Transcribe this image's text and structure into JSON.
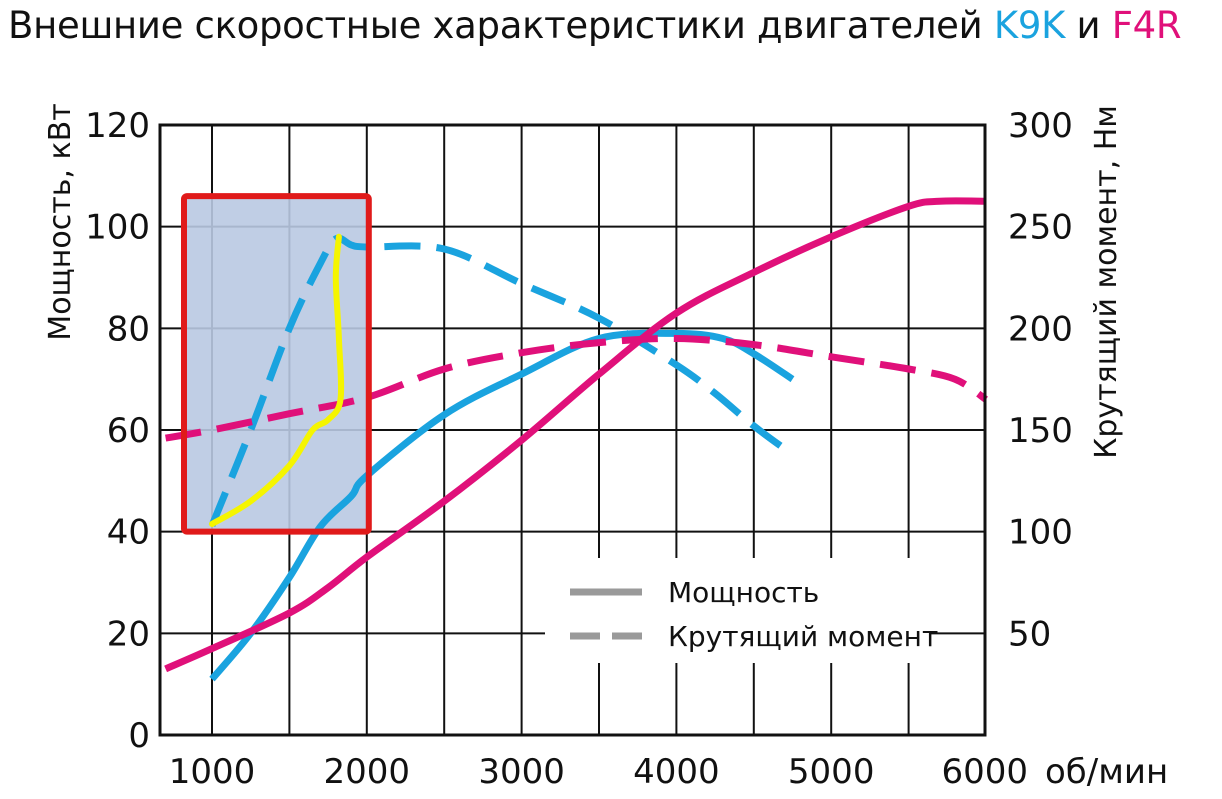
{
  "chart_data": {
    "type": "line",
    "title": {
      "prefix": "Внешние скоростные характеристики двигателей ",
      "engine_a": "K9K",
      "conj": " и ",
      "engine_b": "F4R"
    },
    "xlabel": "об/мин",
    "ylabel_left": "Мощность, кВт",
    "ylabel_right": "Крутящий момент, Нм",
    "xlim": [
      700,
      6000
    ],
    "ylim_left": [
      0,
      120
    ],
    "ylim_right": [
      0,
      300
    ],
    "x_ticks": [
      1000,
      2000,
      3000,
      4000,
      5000,
      6000
    ],
    "y_ticks_left": [
      0,
      20,
      40,
      60,
      80,
      100,
      120
    ],
    "y_ticks_right": [
      50,
      100,
      150,
      200,
      250,
      300
    ],
    "grid": true,
    "legend": {
      "placement": "bottom-center",
      "entries": [
        {
          "label": "Мощность",
          "style": "solid"
        },
        {
          "label": "Крутящий момент",
          "style": "dashed"
        }
      ]
    },
    "colors": {
      "K9K": "#1aa3df",
      "F4R": "#e0107a",
      "highlight_fill": "#b9c9e2",
      "highlight_border": "#e01a1a",
      "annotation": "#f5f500",
      "legend": "#9a9a9a"
    },
    "series": [
      {
        "name": "K9K",
        "measure": "Мощность",
        "style": "solid",
        "x": [
          1000,
          1250,
          1500,
          1700,
          1900,
          2000,
          2500,
          3000,
          3500,
          4000,
          4300,
          4500,
          4750
        ],
        "y": [
          11,
          20,
          31,
          41,
          47,
          51,
          63,
          71,
          78,
          79,
          78,
          75,
          70
        ]
      },
      {
        "name": "K9K",
        "measure": "Крутящий момент",
        "style": "dashed",
        "x": [
          1000,
          1250,
          1500,
          1700,
          1800,
          1900,
          2000,
          2500,
          3000,
          3500,
          4000,
          4250,
          4500,
          4750
        ],
        "y": [
          103,
          150,
          200,
          232,
          244,
          241,
          240,
          239,
          222,
          205,
          182,
          168,
          152,
          138
        ]
      },
      {
        "name": "F4R",
        "measure": "Мощность",
        "style": "solid",
        "x": [
          700,
          1000,
          1500,
          1750,
          2000,
          2500,
          3000,
          3500,
          4000,
          4500,
          5000,
          5500,
          5700,
          6000
        ],
        "y": [
          13,
          17,
          24,
          29,
          35,
          46,
          58,
          71,
          83,
          91,
          98,
          104,
          105,
          105
        ]
      },
      {
        "name": "F4R",
        "measure": "Крутящий момент",
        "style": "dashed",
        "x": [
          700,
          1000,
          1500,
          2000,
          2500,
          3000,
          3500,
          4000,
          4500,
          5000,
          5500,
          5800,
          6000
        ],
        "y": [
          146,
          150,
          158,
          166,
          180,
          188,
          193,
          195,
          192,
          186,
          180,
          175,
          165
        ]
      }
    ],
    "highlight_region": {
      "x": [
        1000,
        2000
      ],
      "y_left": [
        40,
        106
      ]
    },
    "annotation_curve": {
      "x": [
        1000,
        1250,
        1500,
        1650,
        1750,
        1830,
        1820,
        1800,
        1820
      ],
      "y": [
        41.5,
        46,
        53,
        60,
        62,
        66,
        78,
        90,
        98
      ]
    }
  }
}
